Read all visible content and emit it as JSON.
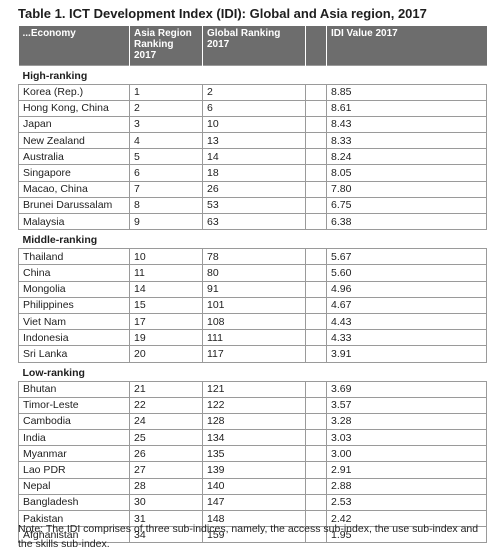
{
  "title": "Table 1. ICT Development Index (IDI): Global and Asia region, 2017",
  "columns": [
    "...Economy",
    "Asia Region Ranking 2017",
    "Global Ranking 2017",
    "",
    "IDI Value 2017"
  ],
  "groups": [
    {
      "label": "High-ranking",
      "rows": [
        [
          "Korea (Rep.)",
          "1",
          "2",
          "8.85"
        ],
        [
          "Hong Kong, China",
          "2",
          "6",
          "8.61"
        ],
        [
          "Japan",
          "3",
          "10",
          "8.43"
        ],
        [
          "New Zealand",
          "4",
          "13",
          "8.33"
        ],
        [
          "Australia",
          "5",
          "14",
          "8.24"
        ],
        [
          "Singapore",
          "6",
          "18",
          "8.05"
        ],
        [
          "Macao, China",
          "7",
          "26",
          "7.80"
        ],
        [
          "Brunei Darussalam",
          "8",
          "53",
          "6.75"
        ],
        [
          "Malaysia",
          "9",
          "63",
          "6.38"
        ]
      ]
    },
    {
      "label": "Middle-ranking",
      "rows": [
        [
          "Thailand",
          "10",
          "78",
          "5.67"
        ],
        [
          "China",
          "11",
          "80",
          "5.60"
        ],
        [
          "Mongolia",
          "14",
          "91",
          "4.96"
        ],
        [
          "Philippines",
          "15",
          "101",
          "4.67"
        ],
        [
          "Viet Nam",
          "17",
          "108",
          "4.43"
        ],
        [
          "Indonesia",
          "19",
          "111",
          "4.33"
        ],
        [
          "Sri Lanka",
          "20",
          "117",
          "3.91"
        ]
      ]
    },
    {
      "label": "Low-ranking",
      "rows": [
        [
          "Bhutan",
          "21",
          "121",
          "3.69"
        ],
        [
          "Timor-Leste",
          "22",
          "122",
          "3.57"
        ],
        [
          "Cambodia",
          "24",
          "128",
          "3.28"
        ],
        [
          "India",
          "25",
          "134",
          "3.03"
        ],
        [
          "Myanmar",
          "26",
          "135",
          "3.00"
        ],
        [
          "Lao PDR",
          "27",
          "139",
          "2.91"
        ],
        [
          "Nepal",
          "28",
          "140",
          "2.88"
        ],
        [
          "Bangladesh",
          "30",
          "147",
          "2.53"
        ],
        [
          "Pakistan",
          "31",
          "148",
          "2.42"
        ],
        [
          "Afghanistan",
          "34",
          "159",
          "1.95"
        ]
      ]
    }
  ],
  "note": "Note: The IDI comprises of three sub-indices, namely, the access sub-index, the use sub-index and the skills sub-index."
}
